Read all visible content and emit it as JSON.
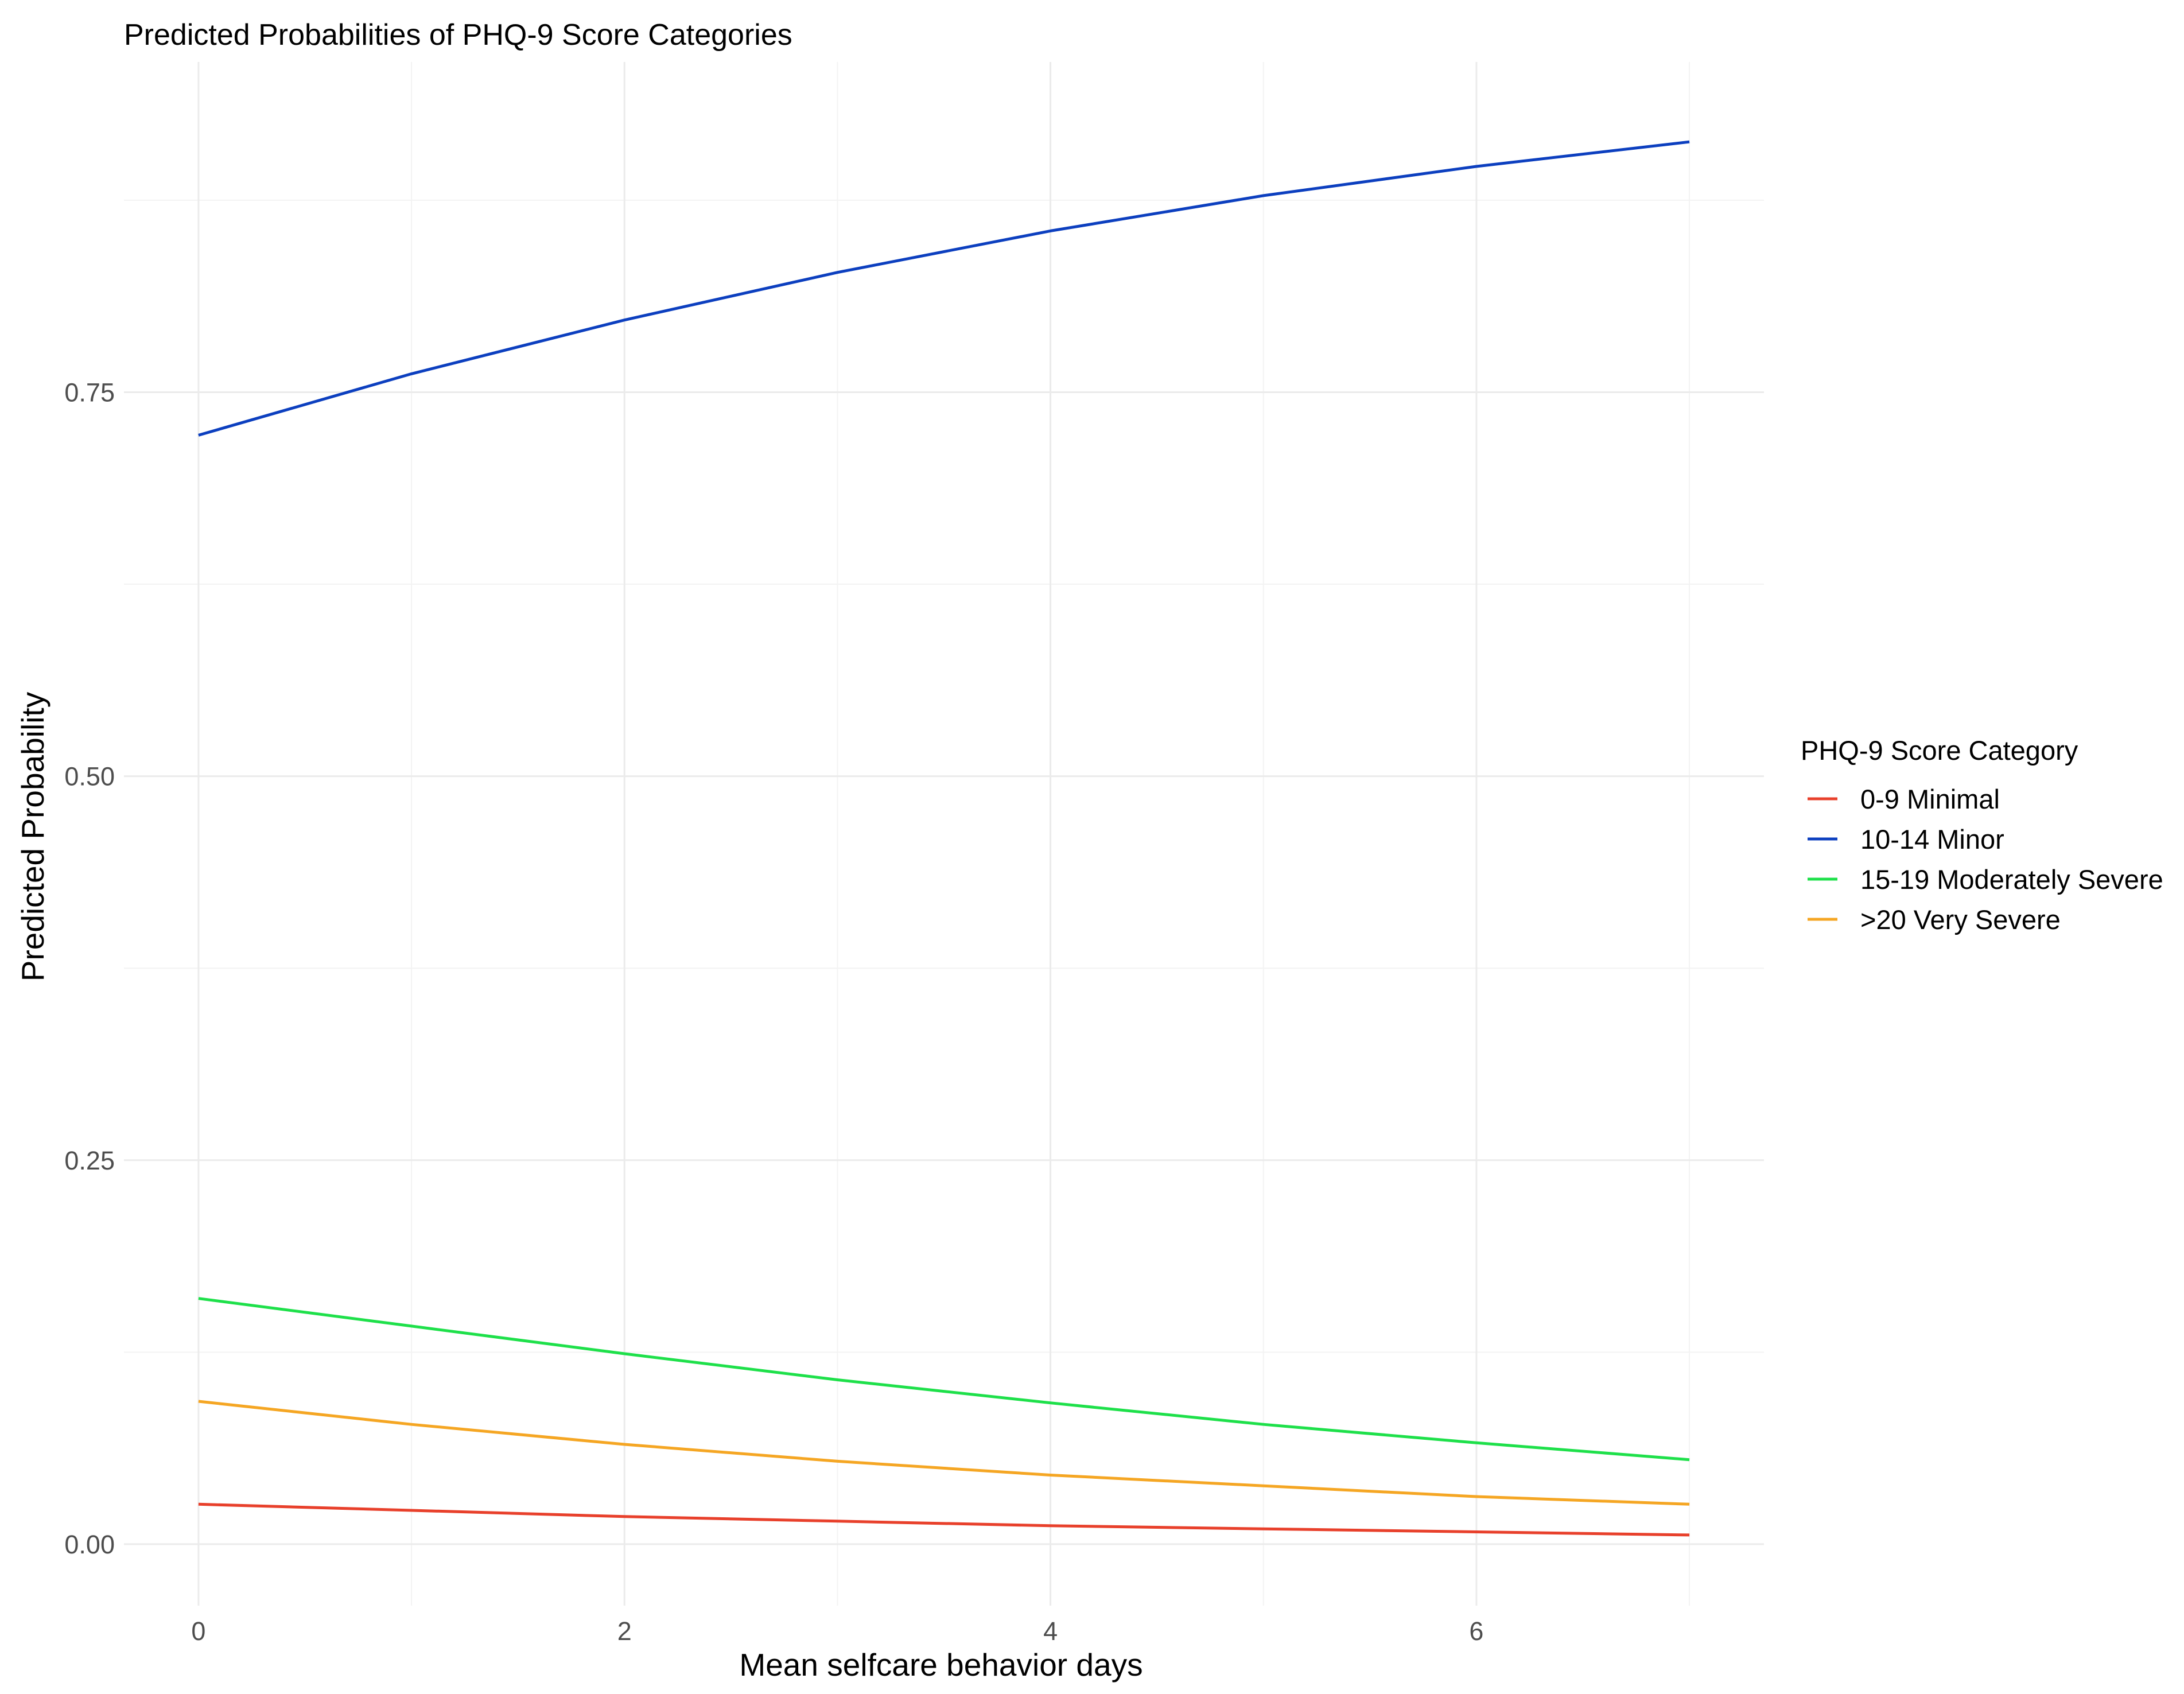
{
  "chart_data": {
    "type": "line",
    "title": "Predicted Probabilities of PHQ-9 Score Categories",
    "xlabel": "Mean selfcare behavior days",
    "ylabel": "Predicted Probability",
    "xlim": [
      -0.35,
      7.35
    ],
    "ylim": [
      -0.04,
      0.965
    ],
    "x_ticks": [
      0,
      2,
      4,
      6
    ],
    "x_tick_labels": [
      "0",
      "2",
      "4",
      "6"
    ],
    "y_ticks": [
      0,
      0.25,
      0.5,
      0.75
    ],
    "y_tick_labels": [
      "0.00",
      "0.25",
      "0.50",
      "0.75"
    ],
    "grid": true,
    "legend": {
      "title": "PHQ-9 Score Category",
      "position": "right"
    },
    "x": [
      0,
      1,
      2,
      3,
      4,
      5,
      6,
      7
    ],
    "series": [
      {
        "name": "0-9 Minimal",
        "color": "#e8402b",
        "values": [
          0.026,
          0.022,
          0.018,
          0.015,
          0.012,
          0.01,
          0.008,
          0.006
        ]
      },
      {
        "name": "10-14 Minor",
        "color": "#0c3fbf",
        "values": [
          0.722,
          0.762,
          0.797,
          0.828,
          0.855,
          0.878,
          0.897,
          0.913
        ]
      },
      {
        "name": "15-19 Moderately Severe",
        "color": "#1ee04a",
        "values": [
          0.16,
          0.142,
          0.124,
          0.107,
          0.092,
          0.078,
          0.066,
          0.055
        ]
      },
      {
        "name": ">20 Very Severe",
        "color": "#f5a623",
        "values": [
          0.093,
          0.078,
          0.065,
          0.054,
          0.045,
          0.038,
          0.031,
          0.026
        ]
      }
    ]
  }
}
